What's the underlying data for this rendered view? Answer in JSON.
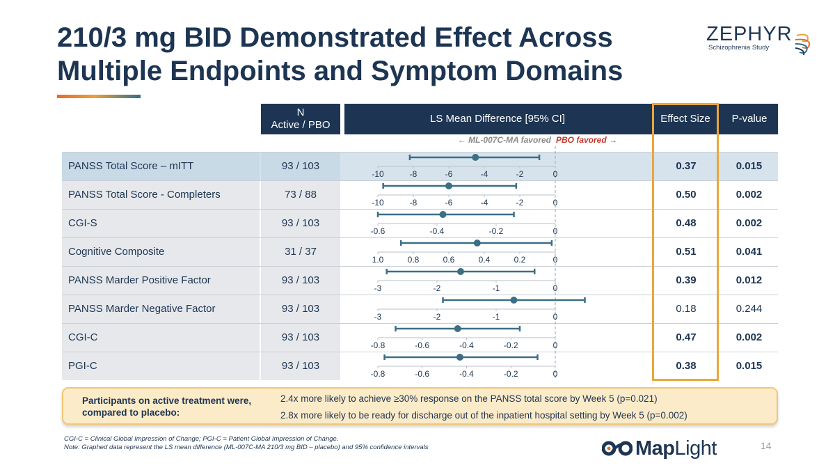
{
  "title": "210/3 mg BID Demonstrated Effect Across Multiple Endpoints and Symptom Domains",
  "logo": {
    "name": "ZEPHYR",
    "subtitle": "Schizophrenia Study"
  },
  "headers": {
    "n": "N",
    "n_sub": "Active / PBO",
    "ls": "LS Mean Difference [95% CI]",
    "effect_size": "Effect Size",
    "p_value": "P-value"
  },
  "favored": {
    "left": "← ML-007C-MA favored",
    "right": "PBO favored →"
  },
  "rows": [
    {
      "label": "PANSS Total Score – mITT",
      "n": "93 / 103",
      "es": "0.37",
      "p": "0.015",
      "significant": true
    },
    {
      "label": "PANSS Total Score - Completers",
      "n": "73 / 88",
      "es": "0.50",
      "p": "0.002",
      "significant": true
    },
    {
      "label": "CGI-S",
      "n": "93 / 103",
      "es": "0.48",
      "p": "0.002",
      "significant": true
    },
    {
      "label": "Cognitive Composite",
      "n": "31 / 37",
      "es": "0.51",
      "p": "0.041",
      "significant": true
    },
    {
      "label": "PANSS Marder Positive Factor",
      "n": "93 / 103",
      "es": "0.39",
      "p": "0.012",
      "significant": true
    },
    {
      "label": "PANSS Marder Negative Factor",
      "n": "93 / 103",
      "es": "0.18",
      "p": "0.244",
      "significant": false
    },
    {
      "label": "CGI-C",
      "n": "93 / 103",
      "es": "0.47",
      "p": "0.002",
      "significant": true
    },
    {
      "label": "PGI-C",
      "n": "93 / 103",
      "es": "0.38",
      "p": "0.015",
      "significant": true
    }
  ],
  "chart_data": {
    "type": "forest",
    "reference_line": 0,
    "rows": [
      {
        "label": "PANSS Total Score – mITT",
        "ticks": [
          -10,
          -8,
          -6,
          -4,
          -2,
          0
        ],
        "tick_labels": [
          "-10",
          "-8",
          "-6",
          "-4",
          "-2",
          "0"
        ],
        "xlim": [
          -10,
          0
        ],
        "estimate": -4.5,
        "ci": [
          -8.2,
          -0.9
        ]
      },
      {
        "label": "PANSS Total Score - Completers",
        "ticks": [
          -10,
          -8,
          -6,
          -4,
          -2,
          0
        ],
        "tick_labels": [
          "-10",
          "-8",
          "-6",
          "-4",
          "-2",
          "0"
        ],
        "xlim": [
          -10,
          0
        ],
        "estimate": -6.0,
        "ci": [
          -9.7,
          -2.2
        ]
      },
      {
        "label": "CGI-S",
        "ticks": [
          -0.6,
          -0.4,
          -0.2,
          0
        ],
        "tick_labels": [
          "-0.6",
          "-0.4",
          "-0.2",
          "0"
        ],
        "xlim": [
          -0.6,
          0
        ],
        "estimate": -0.38,
        "ci": [
          -0.6,
          -0.14
        ]
      },
      {
        "label": "Cognitive Composite",
        "ticks": [
          1.0,
          0.8,
          0.6,
          0.4,
          0.2,
          0
        ],
        "tick_labels": [
          "1.0",
          "0.8",
          "0.6",
          "0.4",
          "0.2",
          "0"
        ],
        "xlim": [
          1.0,
          0
        ],
        "estimate": 0.44,
        "ci": [
          0.87,
          0.02
        ],
        "reversed": true
      },
      {
        "label": "PANSS Marder Positive Factor",
        "ticks": [
          -3,
          -2,
          -1,
          0
        ],
        "tick_labels": [
          "-3",
          "-2",
          "-1",
          "0"
        ],
        "xlim": [
          -3,
          0
        ],
        "estimate": -1.6,
        "ci": [
          -2.85,
          -0.35
        ]
      },
      {
        "label": "PANSS Marder Negative Factor",
        "ticks": [
          -3,
          -2,
          -1,
          0
        ],
        "tick_labels": [
          "-3",
          "-2",
          "-1",
          "0"
        ],
        "xlim": [
          -3,
          0
        ],
        "estimate": -0.7,
        "ci": [
          -1.9,
          0.5
        ]
      },
      {
        "label": "CGI-C",
        "ticks": [
          -0.8,
          -0.6,
          -0.4,
          -0.2,
          0
        ],
        "tick_labels": [
          "-0.8",
          "-0.6",
          "-0.4",
          "-0.2",
          "0"
        ],
        "xlim": [
          -0.8,
          0
        ],
        "estimate": -0.44,
        "ci": [
          -0.72,
          -0.16
        ]
      },
      {
        "label": "PGI-C",
        "ticks": [
          -0.8,
          -0.6,
          -0.4,
          -0.2,
          0
        ],
        "tick_labels": [
          "-0.8",
          "-0.6",
          "-0.4",
          "-0.2",
          "0"
        ],
        "xlim": [
          -0.8,
          0
        ],
        "estimate": -0.43,
        "ci": [
          -0.77,
          -0.08
        ]
      }
    ]
  },
  "callout": {
    "label": "Participants on active treatment were, compared to placebo:",
    "line1": "2.4x more likely to achieve ≥30% response on the PANSS total score by Week 5 (p=0.021)",
    "line2": "2.8x more likely to be ready for discharge out of the inpatient hospital setting by Week 5 (p=0.002)"
  },
  "footnotes": {
    "line1": "CGI-C = Clinical Global Impression of Change; PGI-C = Patient Global Impression of Change.",
    "line2": "Note: Graphed data represent the LS mean difference (ML-007C-MA 210/3 mg BID – placebo) and 95% confidence intervals"
  },
  "brand": {
    "name_bold": "Map",
    "name_light": "Light"
  },
  "page_number": "14",
  "colors": {
    "navy": "#1d3553",
    "forest": "#3c6e86",
    "highlight_border": "#eaa73a",
    "callout_bg": "#fcebc8",
    "pbo_favored": "#c0392b"
  }
}
